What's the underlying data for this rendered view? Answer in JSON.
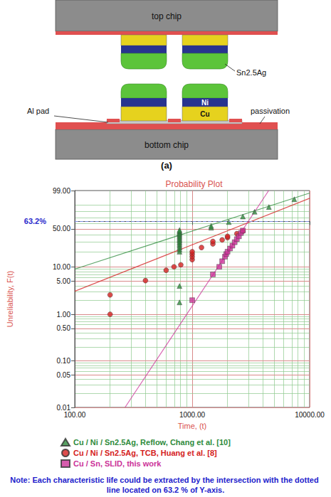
{
  "diagram": {
    "label": "(a)",
    "texts": {
      "top_chip": "top chip",
      "solder": "Sn2.5Ag",
      "al_pad": "Al pad",
      "ni": "Ni",
      "cu": "Cu",
      "passivation": "passivation",
      "bottom_chip": "bottom chip"
    }
  },
  "chart_data": {
    "type": "probability",
    "title": "Probability Plot",
    "x_label": "Time, (t)",
    "y_label": "Unreliability, F(t)",
    "log": "x",
    "grid": true,
    "legend": "bottom",
    "xlim": [
      100,
      10000
    ],
    "xticks": [
      {
        "value": 100,
        "label": "100.00"
      },
      {
        "value": 1000,
        "label": "1000.00"
      },
      {
        "value": 10000,
        "label": "10000.00"
      }
    ],
    "ylim": [
      0.01,
      99
    ],
    "yticks": [
      0.01,
      0.05,
      {
        "value": 0.1,
        "label": "0.10"
      },
      {
        "value": 0.5,
        "label": "0.50"
      },
      {
        "value": 1,
        "label": "1.00"
      },
      {
        "value": 5,
        "label": "5.00"
      },
      {
        "value": 10,
        "label": "10.00"
      },
      {
        "value": 50,
        "label": "50.00"
      },
      {
        "value": 99,
        "label": "99.00"
      }
    ],
    "reference_line": {
      "value": 63.2,
      "label": "63.2%"
    },
    "series": [
      {
        "name": "Cu / Ni / Sn2.5Ag, Reflow, Chang et al. [10]",
        "color": "#2e8b3c",
        "marker": "triangle",
        "x": [
          780,
          780,
          780,
          780,
          780,
          780,
          780,
          780,
          780,
          780,
          780,
          780,
          780,
          780,
          780,
          780,
          780,
          1450,
          1450,
          2050,
          2700,
          3400,
          4500,
          7400
        ],
        "values": [
          1.8,
          4.0,
          20,
          22,
          24,
          26,
          28,
          30,
          32,
          34,
          36,
          38,
          40,
          42,
          44,
          46,
          48,
          52,
          55,
          62,
          72,
          80,
          87,
          95
        ],
        "fit_x": [
          100,
          10000
        ],
        "fit_values": [
          9.0,
          98.3
        ]
      },
      {
        "name": "Cu / Ni / Sn2.5Ag, TCB, Huang et al. [8]",
        "color": "#d42020",
        "marker": "circle",
        "x": [
          200,
          200,
          400,
          600,
          700,
          800,
          1000,
          1000,
          1000,
          1000,
          1200,
          1500,
          1500,
          1800,
          2000,
          2000,
          2400,
          2700
        ],
        "values": [
          1.0,
          2.6,
          5.2,
          8.5,
          10,
          11,
          14,
          16,
          18,
          20,
          24,
          28,
          31,
          33,
          36,
          38,
          42,
          46
        ],
        "fit_x": [
          100,
          10000
        ],
        "fit_values": [
          3.1,
          95.7
        ]
      },
      {
        "name": "Cu / Sn, SLID, this work",
        "color": "#cc3399",
        "marker": "square",
        "x": [
          1000,
          1500,
          1700,
          1800,
          1900,
          1950,
          2000,
          2100,
          2200,
          2300,
          2400,
          2500,
          2600,
          2700
        ],
        "values": [
          2.0,
          7,
          10,
          13,
          16,
          18,
          20,
          23,
          26,
          30,
          34,
          38,
          43,
          47
        ],
        "fit_x": [
          268,
          4480
        ],
        "fit_values": [
          0.01,
          99
        ]
      }
    ],
    "note": "Note: Each characteristic life could be extracted by the intersection with the dotted line located on 63.2 % of Y-axis."
  }
}
